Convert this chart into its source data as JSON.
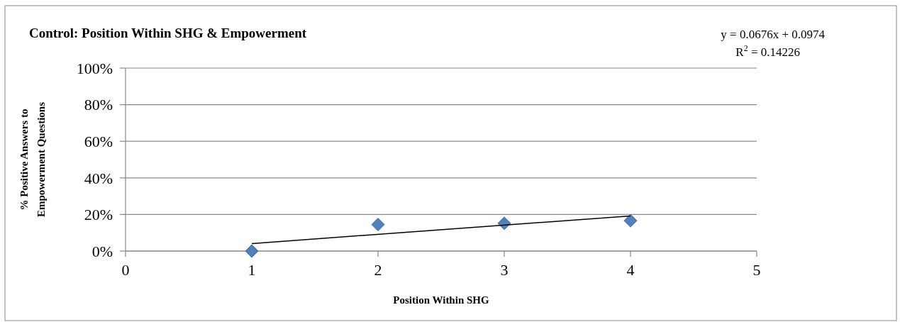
{
  "chart_data": {
    "type": "scatter",
    "title": "Control: Position Within SHG & Empowerment",
    "xlabel": "Position Within SHG",
    "ylabel": "% Positive Answers to Empowerment Questions",
    "annotations": [
      "y = 0.0676x + 0.0974",
      "R$^{2}$ = 0.14226"
    ],
    "x": [
      1,
      2,
      3,
      4
    ],
    "series": [
      {
        "color": "#4f81bd",
        "values": [
          0,
          14.5,
          15.2,
          16.6
        ],
        "marker": "diamond"
      },
      {
        "type": "line",
        "color": "#000000",
        "x": [
          1,
          4
        ],
        "values": [
          4.1,
          19.2
        ],
        "marker": "none"
      }
    ],
    "xlim": [
      0,
      5
    ],
    "xticks": [
      0,
      1,
      2,
      3,
      4,
      5
    ],
    "ylim": [
      0,
      100
    ],
    "yticks": [
      {
        "value": 0,
        "label": "0%"
      },
      {
        "value": 20,
        "label": "20%"
      },
      {
        "value": 40,
        "label": "40%"
      },
      {
        "value": 60,
        "label": "60%"
      },
      {
        "value": 80,
        "label": "80%"
      },
      {
        "value": 100,
        "label": "100%"
      }
    ],
    "grid": "y"
  }
}
